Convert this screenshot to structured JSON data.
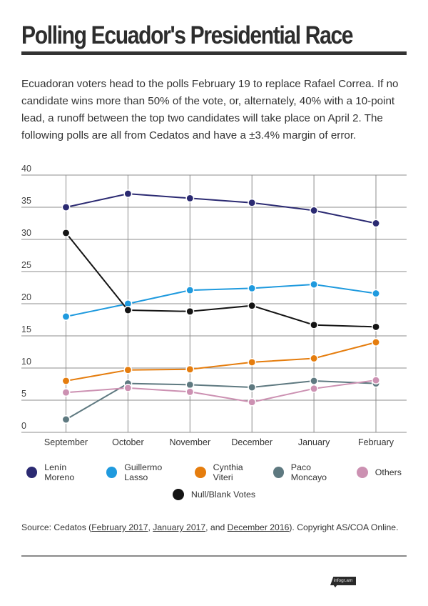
{
  "header": {
    "title": "Polling Ecuador's Presidential Race",
    "intro": "Ecuadoran voters head to the polls February 19 to replace Rafael Correa. If no candidate wins more than 50% of the vote, or, alternately, 40% with a 10-point lead, a runoff between the top two candidates will take place on April 2. The following polls are all from Cedatos and have a ±3.4% margin of error."
  },
  "chart_data": {
    "type": "line",
    "title": "",
    "xlabel": "",
    "ylabel": "",
    "categories": [
      "September",
      "October",
      "November",
      "December",
      "January",
      "February"
    ],
    "ylim": [
      0,
      40
    ],
    "yticks": [
      0,
      5,
      10,
      15,
      20,
      25,
      30,
      35,
      40
    ],
    "ytick_labels": [
      "0",
      "5",
      "10",
      "15",
      "20",
      "25",
      "30",
      "35",
      "40"
    ],
    "grid": true,
    "legend_position": "bottom",
    "series": [
      {
        "name": "Lenín Moreno",
        "color": "#2b2a72",
        "values": [
          35.0,
          37.1,
          36.4,
          35.7,
          34.5,
          32.5
        ]
      },
      {
        "name": "Guillermo Lasso",
        "color": "#1f9ade",
        "values": [
          18.0,
          20.0,
          22.1,
          22.4,
          23.0,
          21.6
        ]
      },
      {
        "name": "Cynthia Viteri",
        "color": "#e57d0e",
        "values": [
          8.0,
          9.7,
          9.8,
          10.9,
          11.5,
          14.0
        ]
      },
      {
        "name": "Paco Moncayo",
        "color": "#5e7980",
        "values": [
          2.0,
          7.6,
          7.4,
          7.0,
          8.0,
          7.6
        ]
      },
      {
        "name": "Others",
        "color": "#cc91b2",
        "values": [
          6.2,
          6.9,
          6.3,
          4.7,
          6.8,
          8.1
        ]
      },
      {
        "name": "Null/Blank Votes",
        "color": "#151515",
        "values": [
          31.0,
          19.0,
          18.8,
          19.7,
          16.7,
          16.4
        ]
      }
    ]
  },
  "legend": {
    "row1": [
      "Lenín Moreno",
      "Guillermo Lasso",
      "Cynthia Viteri",
      "Paco Moncayo",
      "Others"
    ],
    "row2": [
      "Null/Blank Votes"
    ]
  },
  "footer": {
    "source_prefix": "Source: Cedatos (",
    "link1": "February 2017",
    "sep1": ", ",
    "link2": "January 2017",
    "sep2": ", and ",
    "link3": "December 2016",
    "source_suffix": "). Copyright AS/COA Online.",
    "badge": "infogr.am"
  }
}
